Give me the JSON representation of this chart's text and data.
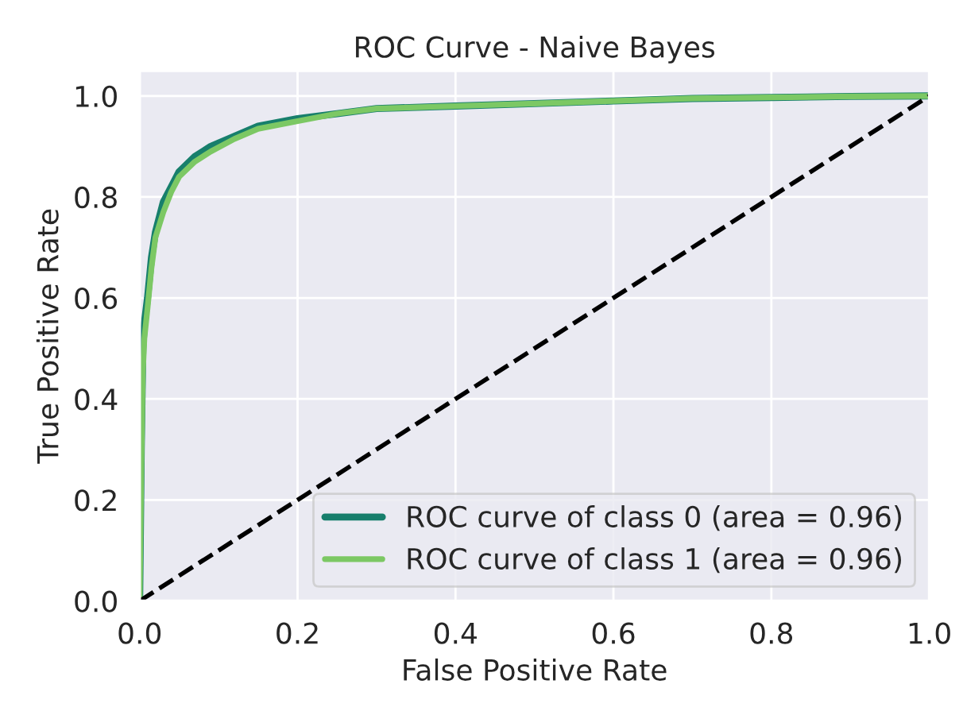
{
  "chart_data": {
    "type": "line",
    "title": "ROC Curve - Naive Bayes",
    "xlabel": "False Positive Rate",
    "ylabel": "True Positive Rate",
    "xlim": [
      0,
      1
    ],
    "ylim": [
      0,
      1.05
    ],
    "xticks": [
      {
        "value": 0,
        "label": "0.0"
      },
      0.2,
      0.4,
      0.6,
      0.8,
      {
        "value": 1,
        "label": "1.0"
      }
    ],
    "yticks": [
      {
        "value": 0,
        "label": "0.0"
      },
      0.2,
      0.4,
      0.6,
      0.8,
      {
        "value": 1,
        "label": "1.0"
      }
    ],
    "grid": true,
    "legend": "bottom right",
    "series": [
      {
        "name": "ROC curve of class 0 (area = 0.96)",
        "color": "#177f6c",
        "x": [
          0,
          0.002,
          0.004,
          0.006,
          0.01,
          0.015,
          0.02,
          0.03,
          0.04,
          0.05,
          0.07,
          0.09,
          0.12,
          0.15,
          0.2,
          0.25,
          0.3,
          0.4,
          0.5,
          0.6,
          0.7,
          0.8,
          0.9,
          1
        ],
        "values": [
          0,
          0.3,
          0.5,
          0.55,
          0.6,
          0.68,
          0.73,
          0.79,
          0.82,
          0.85,
          0.88,
          0.9,
          0.92,
          0.94,
          0.955,
          0.965,
          0.975,
          0.98,
          0.985,
          0.99,
          0.995,
          0.997,
          0.999,
          1
        ]
      },
      {
        "name": "ROC curve of class 1 (area = 0.96)",
        "color": "#7cc864",
        "x": [
          0,
          0.002,
          0.004,
          0.006,
          0.01,
          0.015,
          0.02,
          0.03,
          0.04,
          0.05,
          0.07,
          0.09,
          0.12,
          0.15,
          0.2,
          0.25,
          0.3,
          0.4,
          0.5,
          0.6,
          0.7,
          0.8,
          0.9,
          1
        ],
        "values": [
          0,
          0.25,
          0.45,
          0.52,
          0.58,
          0.66,
          0.72,
          0.77,
          0.81,
          0.84,
          0.87,
          0.89,
          0.915,
          0.935,
          0.95,
          0.965,
          0.975,
          0.98,
          0.985,
          0.99,
          0.995,
          0.997,
          0.999,
          1
        ]
      },
      {
        "color": "#000000",
        "line_style": "dashed",
        "x": [
          0,
          1
        ],
        "values": [
          0,
          1
        ]
      }
    ]
  }
}
